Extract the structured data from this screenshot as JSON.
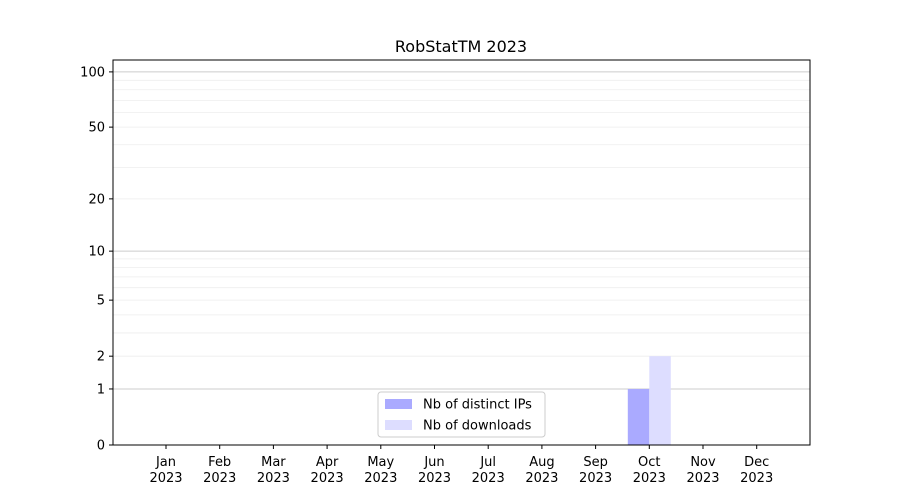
{
  "chart_data": {
    "type": "bar",
    "title": "RobStatTM 2023",
    "xlabel": "",
    "ylabel": "",
    "yscale": "log(1+y)",
    "ylim": [
      0,
      116
    ],
    "grid": true,
    "legend_placement": "lower center",
    "categories": [
      "Jan\n2023",
      "Feb\n2023",
      "Mar\n2023",
      "Apr\n2023",
      "May\n2023",
      "Jun\n2023",
      "Jul\n2023",
      "Aug\n2023",
      "Sep\n2023",
      "Oct\n2023",
      "Nov\n2023",
      "Dec\n2023"
    ],
    "yticks": [
      0,
      1,
      2,
      5,
      10,
      20,
      50,
      100
    ],
    "series": [
      {
        "name": "Nb of distinct IPs",
        "color": "#aaaaff",
        "values": [
          0,
          0,
          0,
          0,
          0,
          0,
          0,
          0,
          0,
          1,
          0,
          0
        ]
      },
      {
        "name": "Nb of downloads",
        "color": "#ddddff",
        "values": [
          0,
          0,
          0,
          0,
          0,
          0,
          0,
          0,
          0,
          2,
          0,
          0
        ]
      }
    ]
  }
}
